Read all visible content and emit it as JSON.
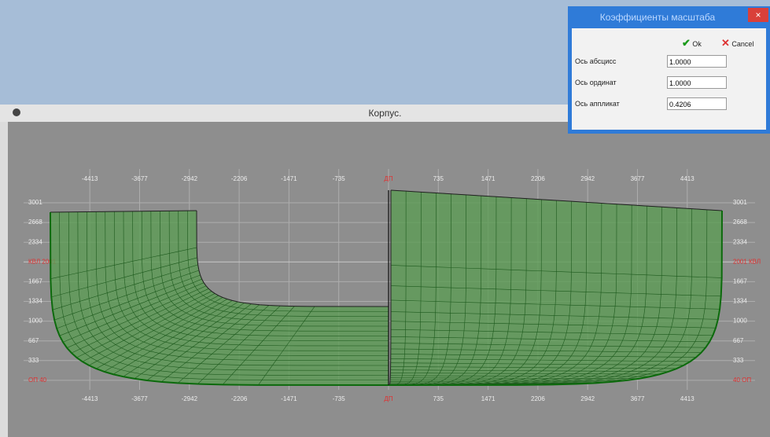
{
  "window": {
    "title": "Корпус."
  },
  "dialog": {
    "title": "Коэффициенты масштаба",
    "ok": "Ok",
    "cancel": "Cancel",
    "fields": [
      {
        "label": "Ось абсцисс",
        "value": "1.0000"
      },
      {
        "label": "Ось ординат",
        "value": "1.0000"
      },
      {
        "label": "Ось аппликат",
        "value": "0.4206"
      }
    ]
  },
  "axes": {
    "top": [
      "-4413",
      "-3677",
      "-2942",
      "-2206",
      "-1471",
      "-735",
      "ДП",
      "735",
      "1471",
      "2206",
      "2942",
      "3677",
      "4413"
    ],
    "bottom": [
      "-4413",
      "-3677",
      "-2942",
      "-2206",
      "-1471",
      "-735",
      "ДП",
      "735",
      "1471",
      "2206",
      "2942",
      "3677",
      "4413"
    ],
    "left": [
      "3001",
      "2668",
      "2334",
      "КВЛ 2001",
      "1667",
      "1334",
      "1000",
      "667",
      "333",
      "ОП 40"
    ],
    "right": [
      "3001",
      "2668",
      "2334",
      "2001 КВЛ",
      "1667",
      "1334",
      "1000",
      "667",
      "333",
      "40 ОП"
    ]
  }
}
